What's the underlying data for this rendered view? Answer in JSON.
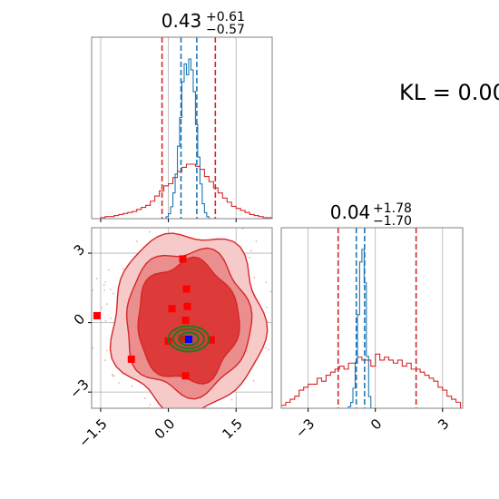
{
  "annotation": {
    "kl_text": "KL = 0.00"
  },
  "colors": {
    "reference": "#d62728",
    "sample": "#1f77b4",
    "contour_inner": "#1f7a1f",
    "marker_mean": "#0000ff",
    "marker_points": "#ff0000",
    "grid": "#b0b0b0",
    "frame": "#808080"
  },
  "chart_data": [
    {
      "type": "histogram",
      "panel": "marginal-param-1",
      "title_value": "0.43",
      "title_plus": "+0.61",
      "title_minus": "−0.57",
      "xlim": [
        -1.7,
        2.3
      ],
      "xticks": [
        -1.5,
        0.0,
        1.5
      ],
      "xtick_labels": [
        "−1.5",
        "0.0",
        "1.5"
      ],
      "grid": true,
      "reference_quantiles": [
        -0.14,
        0.43,
        1.04
      ],
      "sample_quantiles": [
        0.28,
        0.43,
        0.63
      ],
      "reference_hist": {
        "bin_edges": [
          -1.5,
          -1.4,
          -1.3,
          -1.2,
          -1.1,
          -1.0,
          -0.9,
          -0.8,
          -0.7,
          -0.6,
          -0.5,
          -0.4,
          -0.3,
          -0.2,
          -0.1,
          0.0,
          0.1,
          0.2,
          0.3,
          0.4,
          0.5,
          0.6,
          0.7,
          0.8,
          0.9,
          1.0,
          1.1,
          1.2,
          1.3,
          1.4,
          1.5,
          1.6,
          1.7,
          1.8,
          1.9,
          2.0,
          2.1,
          2.2,
          2.3
        ],
        "counts": [
          1,
          2,
          2,
          3,
          4,
          5,
          6,
          7,
          9,
          11,
          13,
          17,
          22,
          27,
          32,
          34,
          40,
          46,
          50,
          53,
          53,
          51,
          48,
          41,
          36,
          30,
          25,
          20,
          16,
          12,
          10,
          8,
          6,
          4,
          3,
          2,
          1,
          1
        ]
      },
      "sample_hist": {
        "bin_edges": [
          -0.05,
          0.0,
          0.05,
          0.1,
          0.15,
          0.2,
          0.25,
          0.3,
          0.35,
          0.4,
          0.45,
          0.5,
          0.55,
          0.6,
          0.65,
          0.7,
          0.75,
          0.8,
          0.85,
          0.9
        ],
        "counts": [
          2,
          5,
          12,
          26,
          45,
          73,
          102,
          138,
          156,
          145,
          161,
          150,
          128,
          95,
          62,
          35,
          15,
          6,
          2
        ]
      }
    },
    {
      "type": "histogram",
      "panel": "marginal-param-2",
      "title_value": "0.04",
      "title_plus": "+1.78",
      "title_minus": "−1.70",
      "xlim": [
        -4.2,
        3.9
      ],
      "xticks": [
        -3,
        0,
        3
      ],
      "xtick_labels": [
        "−3",
        "0",
        "3"
      ],
      "grid": true,
      "reference_quantiles": [
        -1.66,
        0.04,
        1.82
      ],
      "sample_quantiles": [
        -0.85,
        -0.7,
        -0.48
      ],
      "reference_hist": {
        "bin_edges": [
          -4.2,
          -4.0,
          -3.8,
          -3.6,
          -3.4,
          -3.2,
          -3.0,
          -2.8,
          -2.6,
          -2.4,
          -2.2,
          -2.0,
          -1.8,
          -1.6,
          -1.4,
          -1.2,
          -1.0,
          -0.8,
          -0.6,
          -0.4,
          -0.2,
          0.0,
          0.2,
          0.4,
          0.6,
          0.8,
          1.0,
          1.2,
          1.4,
          1.6,
          1.8,
          2.0,
          2.2,
          2.4,
          2.6,
          2.8,
          3.0,
          3.2,
          3.4,
          3.6,
          3.8
        ],
        "counts": [
          1,
          2,
          3,
          4,
          6,
          7,
          8,
          8,
          10,
          9,
          11,
          12,
          13,
          14,
          13,
          15,
          15,
          17,
          16,
          16,
          14,
          18,
          16,
          17,
          16,
          15,
          16,
          14,
          15,
          13,
          13,
          12,
          11,
          10,
          9,
          7,
          6,
          4,
          3,
          2
        ]
      },
      "sample_hist": {
        "bin_edges": [
          -1.2,
          -1.1,
          -1.0,
          -0.9,
          -0.8,
          -0.7,
          -0.6,
          -0.5,
          -0.4,
          -0.3,
          -0.2
        ],
        "counts": [
          2,
          7,
          24,
          55,
          112,
          175,
          190,
          150,
          62,
          14
        ]
      }
    },
    {
      "type": "contour",
      "panel": "joint-param-1-vs-param-2",
      "xlim": [
        -1.7,
        2.3
      ],
      "ylim": [
        -3.7,
        4.1
      ],
      "xticks": [
        -1.5,
        0.0,
        1.5
      ],
      "xtick_labels": [
        "−1.5",
        "0.0",
        "1.5"
      ],
      "yticks": [
        -3,
        0,
        3
      ],
      "ytick_labels": [
        "−3",
        "0",
        "3"
      ],
      "grid": true,
      "reference_contour_center": [
        0.43,
        0.04
      ],
      "reference_contour_radii": [
        [
          1.12,
          2.6
        ],
        [
          1.38,
          3.1
        ],
        [
          1.68,
          3.85
        ]
      ],
      "sample_contour_center": [
        0.45,
        -0.7
      ],
      "sample_contour_radii": [
        [
          0.22,
          0.28
        ],
        [
          0.34,
          0.42
        ],
        [
          0.45,
          0.55
        ]
      ],
      "marker_points": [
        [
          0.32,
          2.75
        ],
        [
          0.4,
          1.45
        ],
        [
          0.08,
          0.6
        ],
        [
          0.42,
          0.7
        ],
        [
          0.38,
          0.1
        ],
        [
          0.3,
          -0.7
        ],
        [
          0.38,
          -2.3
        ],
        [
          -0.82,
          -1.58
        ],
        [
          -1.58,
          0.3
        ],
        [
          0.0,
          -0.8
        ],
        [
          0.95,
          -0.75
        ]
      ],
      "mean_marker": [
        0.45,
        -0.72
      ]
    }
  ]
}
